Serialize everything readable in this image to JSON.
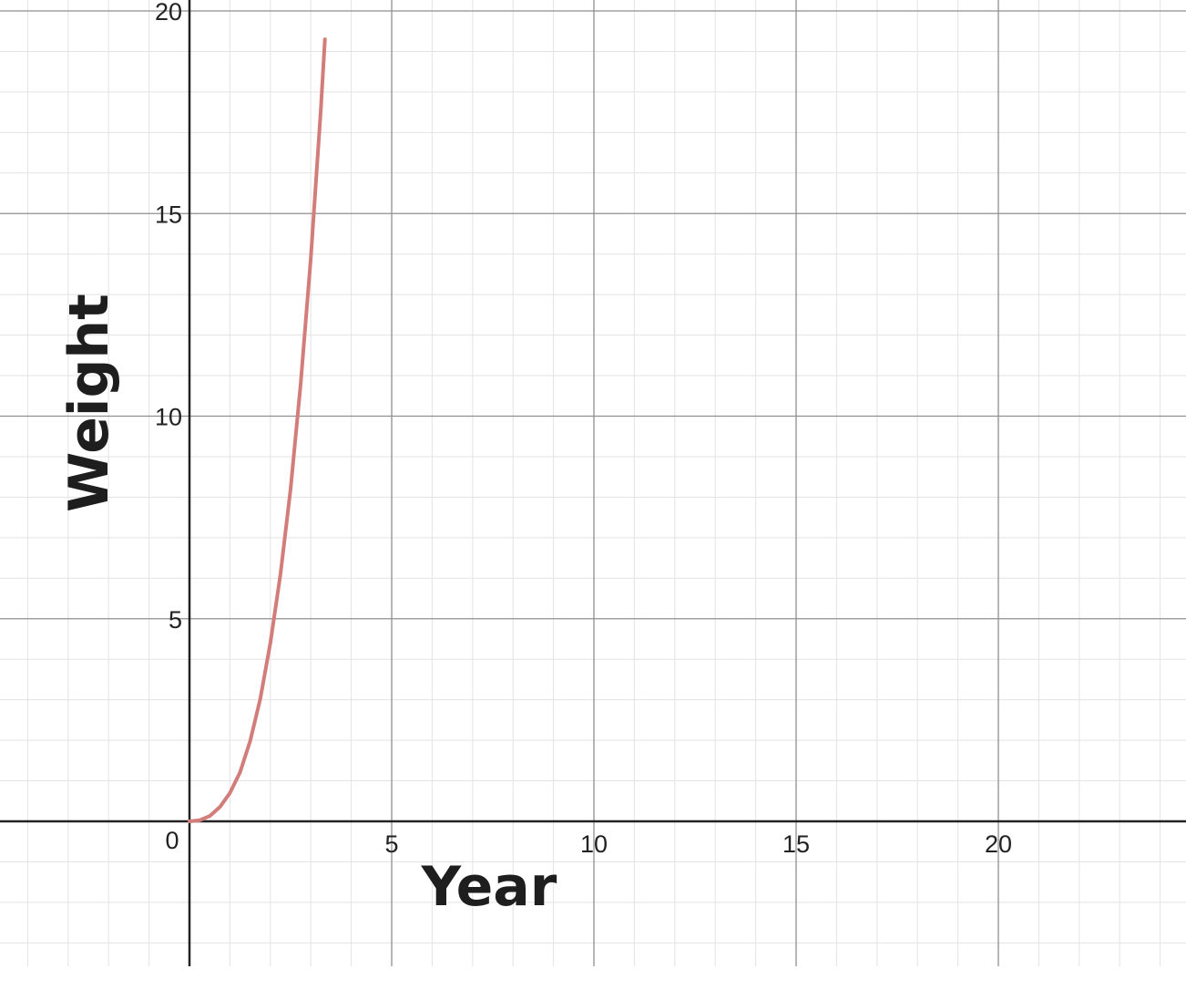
{
  "chart_data": {
    "type": "line",
    "title": "",
    "xlabel": "Year",
    "ylabel": "Weight",
    "xlim": [
      -4.7,
      24.7
    ],
    "ylim": [
      -3.6,
      20.3
    ],
    "x_ticks": [
      {
        "value": 0,
        "label": "0"
      },
      {
        "value": 5,
        "label": "5"
      },
      {
        "value": 10,
        "label": "10"
      },
      {
        "value": 15,
        "label": "15"
      },
      {
        "value": 20,
        "label": "20"
      }
    ],
    "y_ticks": [
      {
        "value": 5,
        "label": "5"
      },
      {
        "value": 10,
        "label": "10"
      },
      {
        "value": 15,
        "label": "15"
      },
      {
        "value": 20,
        "label": "20"
      }
    ],
    "major_grid_step": 5,
    "minor_grid_step": 1,
    "grid": true,
    "legend": false,
    "series": [
      {
        "color": "#d37d7a",
        "x": [
          0,
          0.25,
          0.5,
          0.75,
          1,
          1.25,
          1.5,
          1.75,
          2,
          2.25,
          2.5,
          2.75,
          3,
          3.25,
          3.35
        ],
        "y": [
          0,
          0.025,
          0.13,
          0.35,
          0.7,
          1.21,
          1.98,
          3.02,
          4.4,
          6.1,
          8.2,
          10.8,
          13.9,
          17.6,
          19.3
        ]
      }
    ]
  },
  "colors": {
    "background": "#ffffff",
    "minor_grid": "#e3e3e3",
    "major_grid": "#8f8f8f",
    "axis": "#222222",
    "curve": "#d37d7a"
  }
}
